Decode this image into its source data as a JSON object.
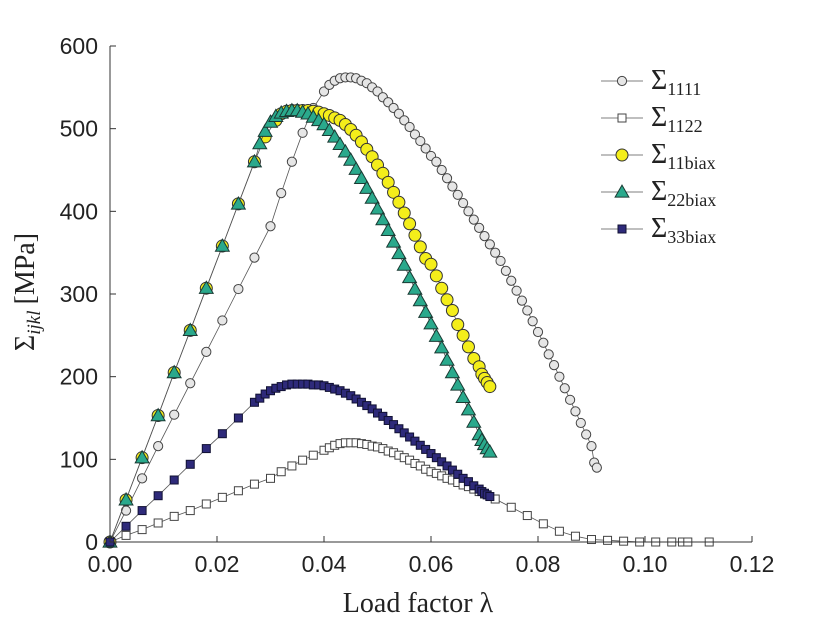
{
  "chart_data": {
    "type": "line",
    "title": "",
    "xlabel": "Load factor λ",
    "ylabel": "Σ",
    "ylabel_sub": "ijkl",
    "ylabel_unit": "[MPa]",
    "xlim": [
      0,
      0.12
    ],
    "ylim": [
      0,
      600
    ],
    "xticks": [
      0,
      0.02,
      0.04,
      0.06,
      0.08,
      0.1,
      0.12
    ],
    "xtick_labels": [
      "0.00",
      "0.02",
      "0.04",
      "0.06",
      "0.08",
      "0.10",
      "0.12"
    ],
    "yticks": [
      0,
      100,
      200,
      300,
      400,
      500,
      600
    ],
    "ytick_labels": [
      "0",
      "100",
      "200",
      "300",
      "400",
      "500",
      "600"
    ],
    "grid": false,
    "legend_position": "top-right",
    "series": [
      {
        "name": "Σ1111",
        "main": "Σ",
        "sub": "1111",
        "marker": "circle",
        "fill": "#e6e6e6",
        "stroke": "#444444",
        "x": [
          0,
          0.003,
          0.006,
          0.009,
          0.012,
          0.015,
          0.018,
          0.021,
          0.024,
          0.027,
          0.03,
          0.032,
          0.034,
          0.036,
          0.038,
          0.04,
          0.041,
          0.042,
          0.043,
          0.044,
          0.045,
          0.046,
          0.047,
          0.048,
          0.049,
          0.05,
          0.051,
          0.052,
          0.053,
          0.054,
          0.055,
          0.056,
          0.057,
          0.058,
          0.059,
          0.06,
          0.061,
          0.062,
          0.063,
          0.064,
          0.065,
          0.066,
          0.067,
          0.068,
          0.069,
          0.07,
          0.071,
          0.072,
          0.073,
          0.074,
          0.075,
          0.076,
          0.077,
          0.078,
          0.079,
          0.08,
          0.081,
          0.082,
          0.083,
          0.084,
          0.085,
          0.086,
          0.087,
          0.088,
          0.089,
          0.09,
          0.0905,
          0.091
        ],
        "y": [
          0,
          38,
          77,
          116,
          154,
          192,
          230,
          268,
          306,
          344,
          382,
          422,
          460,
          495,
          525,
          545,
          553,
          558,
          561,
          562,
          562,
          561,
          558,
          555,
          550,
          545,
          538,
          532,
          525,
          518,
          510,
          502,
          493,
          485,
          476,
          467,
          460,
          450,
          440,
          430,
          420,
          410,
          400,
          390,
          380,
          370,
          360,
          350,
          340,
          328,
          316,
          304,
          292,
          280,
          267,
          254,
          241,
          227,
          214,
          200,
          186,
          172,
          158,
          144,
          130,
          116,
          96,
          90
        ]
      },
      {
        "name": "Σ1122",
        "main": "Σ",
        "sub": "1122",
        "marker": "square",
        "fill": "#ffffff",
        "stroke": "#444444",
        "x": [
          0,
          0.003,
          0.006,
          0.009,
          0.012,
          0.015,
          0.018,
          0.021,
          0.024,
          0.027,
          0.03,
          0.032,
          0.034,
          0.036,
          0.038,
          0.04,
          0.041,
          0.042,
          0.043,
          0.044,
          0.045,
          0.046,
          0.047,
          0.048,
          0.049,
          0.05,
          0.051,
          0.052,
          0.053,
          0.054,
          0.055,
          0.056,
          0.057,
          0.058,
          0.059,
          0.06,
          0.061,
          0.062,
          0.063,
          0.064,
          0.065,
          0.066,
          0.067,
          0.068,
          0.069,
          0.07,
          0.072,
          0.075,
          0.078,
          0.081,
          0.084,
          0.087,
          0.09,
          0.093,
          0.096,
          0.099,
          0.102,
          0.105,
          0.107,
          0.108,
          0.112
        ],
        "y": [
          0,
          8,
          15,
          23,
          31,
          38,
          46,
          54,
          62,
          70,
          77,
          85,
          92,
          99,
          105,
          111,
          114,
          117,
          119,
          120,
          120,
          120,
          119,
          118,
          116,
          115,
          113,
          110,
          108,
          105,
          102,
          99,
          95,
          92,
          88,
          85,
          83,
          80,
          77,
          75,
          72,
          69,
          67,
          64,
          61,
          58,
          52,
          42,
          32,
          22,
          13,
          7,
          3,
          2,
          1,
          0,
          0,
          0,
          0,
          0,
          0
        ]
      },
      {
        "name": "Σ11biax",
        "main": "Σ",
        "sub": "11biax",
        "marker": "circle",
        "fill": "#f4ee1a",
        "stroke": "#333333",
        "x": [
          0,
          0.003,
          0.006,
          0.009,
          0.012,
          0.015,
          0.018,
          0.021,
          0.024,
          0.027,
          0.029,
          0.031,
          0.032,
          0.033,
          0.034,
          0.035,
          0.036,
          0.037,
          0.038,
          0.039,
          0.04,
          0.041,
          0.042,
          0.043,
          0.044,
          0.045,
          0.046,
          0.047,
          0.048,
          0.049,
          0.05,
          0.051,
          0.052,
          0.053,
          0.054,
          0.055,
          0.056,
          0.057,
          0.058,
          0.059,
          0.06,
          0.061,
          0.062,
          0.063,
          0.064,
          0.065,
          0.066,
          0.067,
          0.068,
          0.069,
          0.0695,
          0.07,
          0.0705,
          0.071
        ],
        "y": [
          0,
          51,
          102,
          153,
          205,
          256,
          307,
          358,
          409,
          460,
          490,
          510,
          518,
          521,
          522,
          522,
          522,
          522,
          521,
          520,
          518,
          516,
          513,
          510,
          505,
          499,
          492,
          484,
          475,
          466,
          456,
          446,
          435,
          423,
          411,
          398,
          385,
          371,
          357,
          343,
          336,
          322,
          307,
          293,
          280,
          263,
          250,
          236,
          222,
          212,
          203,
          198,
          193,
          188
        ]
      },
      {
        "name": "Σ22biax",
        "main": "Σ",
        "sub": "22biax",
        "marker": "triangle",
        "fill": "#2aa98c",
        "stroke": "#1a3a33",
        "x": [
          0,
          0.003,
          0.006,
          0.009,
          0.012,
          0.015,
          0.018,
          0.021,
          0.024,
          0.027,
          0.028,
          0.029,
          0.03,
          0.031,
          0.032,
          0.033,
          0.034,
          0.035,
          0.036,
          0.037,
          0.038,
          0.039,
          0.04,
          0.041,
          0.042,
          0.043,
          0.044,
          0.045,
          0.046,
          0.047,
          0.048,
          0.049,
          0.05,
          0.051,
          0.052,
          0.053,
          0.054,
          0.055,
          0.056,
          0.057,
          0.058,
          0.059,
          0.06,
          0.061,
          0.062,
          0.063,
          0.064,
          0.065,
          0.066,
          0.067,
          0.068,
          0.069,
          0.0695,
          0.07,
          0.0705,
          0.071
        ],
        "y": [
          0,
          51,
          102,
          153,
          205,
          256,
          307,
          358,
          409,
          460,
          482,
          497,
          508,
          515,
          519,
          521,
          522,
          522,
          520,
          518,
          514,
          510,
          505,
          498,
          490,
          481,
          472,
          462,
          451,
          440,
          428,
          416,
          403,
          390,
          377,
          363,
          349,
          335,
          320,
          306,
          292,
          278,
          264,
          249,
          235,
          220,
          205,
          190,
          175,
          160,
          145,
          130,
          123,
          118,
          113,
          109
        ]
      },
      {
        "name": "Σ33biax",
        "main": "Σ",
        "sub": "33biax",
        "marker": "square",
        "fill": "#2e2a7a",
        "stroke": "#111133",
        "x": [
          0,
          0.003,
          0.006,
          0.009,
          0.012,
          0.015,
          0.018,
          0.021,
          0.024,
          0.027,
          0.028,
          0.029,
          0.03,
          0.031,
          0.032,
          0.033,
          0.034,
          0.035,
          0.036,
          0.037,
          0.038,
          0.039,
          0.04,
          0.041,
          0.042,
          0.043,
          0.044,
          0.045,
          0.046,
          0.047,
          0.048,
          0.049,
          0.05,
          0.051,
          0.052,
          0.053,
          0.054,
          0.055,
          0.056,
          0.057,
          0.058,
          0.059,
          0.06,
          0.061,
          0.062,
          0.063,
          0.064,
          0.065,
          0.066,
          0.067,
          0.068,
          0.069,
          0.0695,
          0.07,
          0.0705,
          0.071
        ],
        "y": [
          0,
          19,
          38,
          56,
          75,
          94,
          113,
          131,
          150,
          169,
          174,
          179,
          183,
          186,
          188,
          190,
          191,
          191,
          191,
          191,
          190,
          190,
          189,
          187,
          185,
          183,
          180,
          177,
          173,
          169,
          165,
          161,
          156,
          152,
          147,
          142,
          137,
          132,
          127,
          122,
          117,
          112,
          107,
          102,
          97,
          92,
          87,
          82,
          77,
          73,
          68,
          64,
          61,
          59,
          57,
          55
        ]
      }
    ]
  }
}
